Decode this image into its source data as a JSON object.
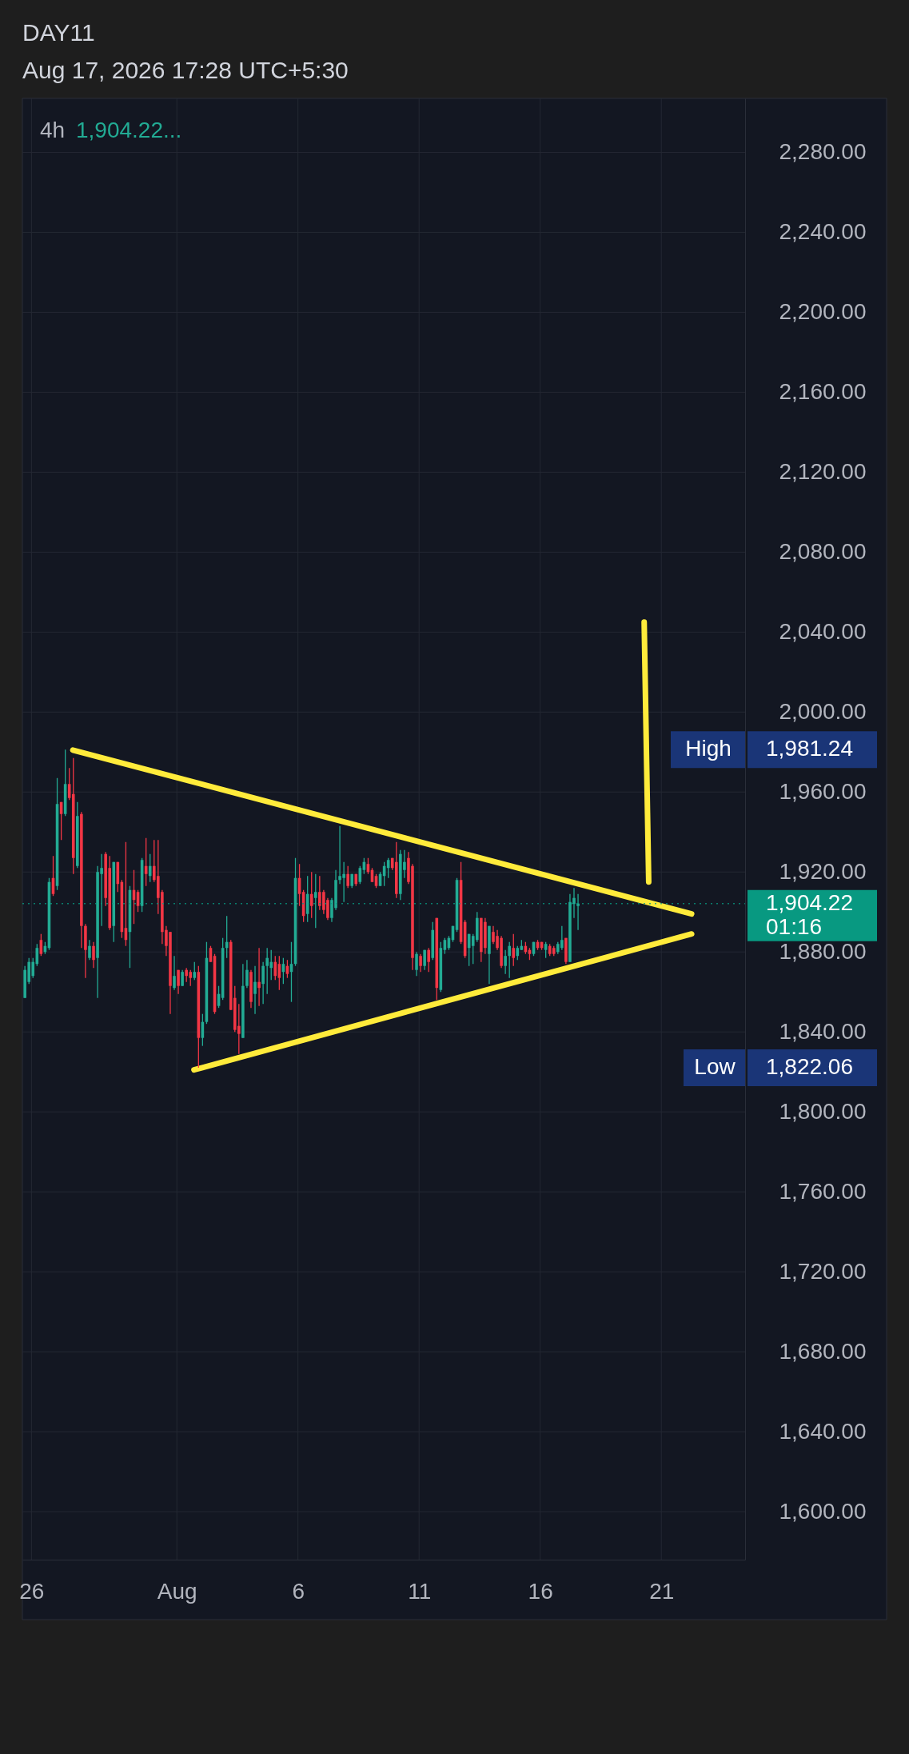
{
  "chart_data": {
    "type": "candlestick",
    "title": "DAY11",
    "subtitle": "Aug 17, 2026 17:28 UTC+5:30",
    "annotations": [
      "4h",
      "1,904.22...",
      "High",
      "1,981.24",
      "Low",
      "1,822.06",
      "01:16"
    ],
    "x": [
      "2026-07-25T17:30",
      "2026-07-25T21:30",
      "2026-07-26T01:30",
      "2026-07-26T05:30",
      "2026-07-26T09:30",
      "2026-07-26T13:30",
      "2026-07-26T17:30",
      "2026-07-26T21:30",
      "2026-07-27T01:30",
      "2026-07-27T05:30",
      "2026-07-27T09:30",
      "2026-07-27T13:30",
      "2026-07-27T17:30",
      "2026-07-27T21:30",
      "2026-07-28T01:30",
      "2026-07-28T05:30",
      "2026-07-28T09:30",
      "2026-07-28T13:30",
      "2026-07-28T17:30",
      "2026-07-28T21:30",
      "2026-07-29T01:30",
      "2026-07-29T05:30",
      "2026-07-29T09:30",
      "2026-07-29T13:30",
      "2026-07-29T17:30",
      "2026-07-29T21:30",
      "2026-07-30T01:30",
      "2026-07-30T05:30",
      "2026-07-30T09:30",
      "2026-07-30T13:30",
      "2026-07-30T17:30",
      "2026-07-30T21:30",
      "2026-07-31T01:30",
      "2026-07-31T05:30",
      "2026-07-31T09:30",
      "2026-07-31T13:30",
      "2026-07-31T17:30",
      "2026-07-31T21:30",
      "2026-08-01T01:30",
      "2026-08-01T05:30",
      "2026-08-01T09:30",
      "2026-08-01T13:30",
      "2026-08-01T17:30",
      "2026-08-01T21:30",
      "2026-08-02T01:30",
      "2026-08-02T05:30",
      "2026-08-02T09:30",
      "2026-08-02T13:30",
      "2026-08-02T17:30",
      "2026-08-02T21:30",
      "2026-08-03T01:30",
      "2026-08-03T05:30",
      "2026-08-03T09:30",
      "2026-08-03T13:30",
      "2026-08-03T17:30",
      "2026-08-03T21:30",
      "2026-08-04T01:30",
      "2026-08-04T05:30",
      "2026-08-04T09:30",
      "2026-08-04T13:30",
      "2026-08-04T17:30",
      "2026-08-04T21:30",
      "2026-08-05T01:30",
      "2026-08-05T05:30",
      "2026-08-05T09:30",
      "2026-08-05T13:30",
      "2026-08-05T17:30",
      "2026-08-05T21:30",
      "2026-08-06T01:30",
      "2026-08-06T05:30",
      "2026-08-06T09:30",
      "2026-08-06T13:30",
      "2026-08-06T17:30",
      "2026-08-06T21:30",
      "2026-08-07T01:30",
      "2026-08-07T05:30",
      "2026-08-07T09:30",
      "2026-08-07T13:30",
      "2026-08-07T17:30",
      "2026-08-07T21:30",
      "2026-08-08T01:30",
      "2026-08-08T05:30",
      "2026-08-08T09:30",
      "2026-08-08T13:30",
      "2026-08-08T17:30",
      "2026-08-08T21:30",
      "2026-08-09T01:30",
      "2026-08-09T05:30",
      "2026-08-09T09:30",
      "2026-08-09T13:30",
      "2026-08-09T17:30",
      "2026-08-09T21:30",
      "2026-08-10T01:30",
      "2026-08-10T05:30",
      "2026-08-10T09:30",
      "2026-08-10T13:30",
      "2026-08-10T17:30",
      "2026-08-10T21:30",
      "2026-08-11T01:30",
      "2026-08-11T05:30",
      "2026-08-11T09:30",
      "2026-08-11T13:30",
      "2026-08-11T17:30",
      "2026-08-11T21:30",
      "2026-08-12T01:30",
      "2026-08-12T05:30",
      "2026-08-12T09:30",
      "2026-08-12T13:30",
      "2026-08-12T17:30",
      "2026-08-12T21:30",
      "2026-08-13T01:30",
      "2026-08-13T05:30",
      "2026-08-13T09:30",
      "2026-08-13T13:30",
      "2026-08-13T17:30",
      "2026-08-13T21:30",
      "2026-08-14T01:30",
      "2026-08-14T05:30",
      "2026-08-14T09:30",
      "2026-08-14T13:30",
      "2026-08-14T17:30",
      "2026-08-14T21:30",
      "2026-08-15T01:30",
      "2026-08-15T05:30",
      "2026-08-15T09:30",
      "2026-08-15T13:30",
      "2026-08-15T17:30",
      "2026-08-15T21:30",
      "2026-08-16T01:30",
      "2026-08-16T05:30",
      "2026-08-16T09:30",
      "2026-08-16T13:30",
      "2026-08-16T17:30",
      "2026-08-16T21:30",
      "2026-08-17T01:30",
      "2026-08-17T05:30",
      "2026-08-17T09:30",
      "2026-08-17T13:30"
    ],
    "ohlc": [
      [
        1857,
        1873,
        1857,
        1871
      ],
      [
        1865,
        1877,
        1864,
        1875
      ],
      [
        1868,
        1877,
        1867,
        1875
      ],
      [
        1874,
        1884,
        1873,
        1882
      ],
      [
        1886,
        1889,
        1878,
        1879
      ],
      [
        1880,
        1885,
        1879,
        1883
      ],
      [
        1882,
        1917,
        1881,
        1915
      ],
      [
        1917,
        1928,
        1908,
        1909
      ],
      [
        1913,
        1967,
        1911,
        1954
      ],
      [
        1955,
        1955,
        1936,
        1949
      ],
      [
        1949,
        1981.24,
        1948,
        1964
      ],
      [
        1964,
        1972,
        1956,
        1957
      ],
      [
        1959,
        1977,
        1919,
        1927
      ],
      [
        1923,
        1955,
        1922,
        1948
      ],
      [
        1949,
        1950,
        1882,
        1893
      ],
      [
        1893,
        1894,
        1867,
        1881
      ],
      [
        1877,
        1886,
        1876,
        1883
      ],
      [
        1883,
        1885,
        1872,
        1876
      ],
      [
        1877,
        1923,
        1857,
        1920
      ],
      [
        1919,
        1929,
        1893,
        1922
      ],
      [
        1929,
        1930,
        1903,
        1907
      ],
      [
        1922,
        1928,
        1891,
        1892
      ],
      [
        1893,
        1925,
        1885,
        1925
      ],
      [
        1925,
        1925,
        1910,
        1914
      ],
      [
        1915,
        1916,
        1887,
        1890
      ],
      [
        1892,
        1935,
        1883,
        1886
      ],
      [
        1890,
        1913,
        1872,
        1911
      ],
      [
        1911,
        1921,
        1894,
        1906
      ],
      [
        1910,
        1911,
        1900,
        1903
      ],
      [
        1903,
        1927,
        1900,
        1926
      ],
      [
        1923,
        1937,
        1913,
        1919
      ],
      [
        1918,
        1929,
        1915,
        1923
      ],
      [
        1923,
        1936,
        1915,
        1916
      ],
      [
        1918,
        1936,
        1899,
        1907
      ],
      [
        1910,
        1911,
        1884,
        1890
      ],
      [
        1891,
        1893,
        1878,
        1883
      ],
      [
        1890,
        1890,
        1849,
        1863
      ],
      [
        1862,
        1878,
        1861,
        1868
      ],
      [
        1871,
        1871,
        1859,
        1863
      ],
      [
        1863,
        1871,
        1863,
        1870
      ],
      [
        1871,
        1872,
        1865,
        1868
      ],
      [
        1870,
        1871,
        1863,
        1867
      ],
      [
        1867,
        1875,
        1866,
        1870
      ],
      [
        1870,
        1873,
        1822.06,
        1837
      ],
      [
        1837,
        1849,
        1833,
        1845
      ],
      [
        1845,
        1885,
        1844,
        1877
      ],
      [
        1882,
        1883,
        1875,
        1875
      ],
      [
        1878,
        1879,
        1849,
        1850
      ],
      [
        1853,
        1863,
        1852,
        1859
      ],
      [
        1857,
        1887,
        1856,
        1882
      ],
      [
        1882,
        1898,
        1877,
        1885
      ],
      [
        1885,
        1886,
        1851,
        1851
      ],
      [
        1857,
        1863,
        1840,
        1841
      ],
      [
        1843,
        1854,
        1829,
        1839
      ],
      [
        1837,
        1874,
        1837,
        1863
      ],
      [
        1863,
        1876,
        1862,
        1871
      ],
      [
        1870,
        1871,
        1852,
        1855
      ],
      [
        1859,
        1873,
        1849,
        1865
      ],
      [
        1865,
        1882,
        1853,
        1862
      ],
      [
        1864,
        1875,
        1854,
        1873
      ],
      [
        1873,
        1882,
        1859,
        1877
      ],
      [
        1872,
        1881,
        1866,
        1875
      ],
      [
        1875,
        1878,
        1866,
        1868
      ],
      [
        1874,
        1878,
        1861,
        1867
      ],
      [
        1870,
        1877,
        1864,
        1874
      ],
      [
        1873,
        1876,
        1867,
        1869
      ],
      [
        1870,
        1885,
        1855,
        1874
      ],
      [
        1874,
        1927,
        1873,
        1917
      ],
      [
        1917,
        1924,
        1903,
        1909
      ],
      [
        1910,
        1911,
        1895,
        1898
      ],
      [
        1899,
        1918,
        1895,
        1909
      ],
      [
        1909,
        1920,
        1897,
        1903
      ],
      [
        1907,
        1919,
        1892,
        1910
      ],
      [
        1910,
        1918,
        1901,
        1903
      ],
      [
        1910,
        1911,
        1899,
        1901
      ],
      [
        1906,
        1907,
        1896,
        1897
      ],
      [
        1897,
        1907,
        1895,
        1906
      ],
      [
        1902,
        1921,
        1901,
        1916
      ],
      [
        1916,
        1943,
        1914,
        1918
      ],
      [
        1917,
        1925,
        1905,
        1919
      ],
      [
        1919,
        1923,
        1912,
        1913
      ],
      [
        1913,
        1919,
        1912,
        1919
      ],
      [
        1919,
        1919,
        1913,
        1914
      ],
      [
        1915,
        1923,
        1914,
        1922
      ],
      [
        1921,
        1927,
        1919,
        1925
      ],
      [
        1924,
        1927,
        1919,
        1920
      ],
      [
        1921,
        1922,
        1915,
        1915
      ],
      [
        1918,
        1919,
        1912,
        1913
      ],
      [
        1913,
        1920,
        1913,
        1919
      ],
      [
        1918,
        1925,
        1913,
        1923
      ],
      [
        1922,
        1927,
        1917,
        1926
      ],
      [
        1927,
        1927,
        1921,
        1922
      ],
      [
        1925,
        1935,
        1907,
        1909
      ],
      [
        1909,
        1931,
        1906,
        1929
      ],
      [
        1921,
        1931,
        1917,
        1925
      ],
      [
        1927,
        1930,
        1914,
        1915
      ],
      [
        1923,
        1924,
        1871,
        1877
      ],
      [
        1871,
        1880,
        1868,
        1879
      ],
      [
        1878,
        1879,
        1870,
        1873
      ],
      [
        1873,
        1881,
        1871,
        1881
      ],
      [
        1881,
        1882,
        1870,
        1875
      ],
      [
        1877,
        1895,
        1876,
        1891
      ],
      [
        1897,
        1897,
        1856,
        1862
      ],
      [
        1861,
        1885,
        1860,
        1882
      ],
      [
        1881,
        1887,
        1879,
        1886
      ],
      [
        1882,
        1888,
        1881,
        1887
      ],
      [
        1886,
        1893,
        1885,
        1893
      ],
      [
        1891,
        1917,
        1890,
        1916
      ],
      [
        1916,
        1925,
        1884,
        1885
      ],
      [
        1895,
        1896,
        1877,
        1878
      ],
      [
        1882,
        1889,
        1873,
        1889
      ],
      [
        1883,
        1889,
        1874,
        1888
      ],
      [
        1886,
        1900,
        1885,
        1897
      ],
      [
        1897,
        1897,
        1875,
        1880
      ],
      [
        1895,
        1897,
        1879,
        1882
      ],
      [
        1879,
        1893,
        1864,
        1893
      ],
      [
        1890,
        1893,
        1884,
        1885
      ],
      [
        1888,
        1891,
        1881,
        1882
      ],
      [
        1887,
        1888,
        1872,
        1873
      ],
      [
        1873,
        1881,
        1869,
        1878
      ],
      [
        1878,
        1885,
        1867,
        1883
      ],
      [
        1882,
        1889,
        1873,
        1877
      ],
      [
        1878,
        1883,
        1876,
        1882
      ],
      [
        1881,
        1886,
        1881,
        1883
      ],
      [
        1883,
        1885,
        1879,
        1880
      ],
      [
        1881,
        1882,
        1876,
        1879
      ],
      [
        1879,
        1885,
        1878,
        1885
      ],
      [
        1885,
        1886,
        1881,
        1882
      ],
      [
        1885,
        1885,
        1881,
        1882
      ],
      [
        1881,
        1885,
        1877,
        1884
      ],
      [
        1883,
        1884,
        1878,
        1879
      ],
      [
        1882,
        1883,
        1878,
        1879
      ],
      [
        1880,
        1885,
        1879,
        1884
      ],
      [
        1882,
        1893,
        1881,
        1886
      ],
      [
        1887,
        1887,
        1874,
        1875
      ],
      [
        1875,
        1909,
        1875,
        1905
      ],
      [
        1904,
        1912,
        1897,
        1907
      ],
      [
        1903,
        1909,
        1891,
        1904.22
      ]
    ],
    "colors": [
      "#22ab94",
      "#22ab94",
      "#22ab94",
      "#22ab94",
      "#f23645",
      "#22ab94",
      "#22ab94",
      "#f23645",
      "#22ab94",
      "#f23645",
      "#22ab94",
      "#f23645",
      "#f23645",
      "#22ab94",
      "#f23645",
      "#f23645",
      "#22ab94",
      "#f23645",
      "#22ab94",
      "#22ab94",
      "#f23645",
      "#f23645",
      "#22ab94",
      "#f23645",
      "#f23645",
      "#f23645",
      "#22ab94",
      "#f23645",
      "#f23645",
      "#22ab94",
      "#f23645",
      "#22ab94",
      "#f23645",
      "#f23645",
      "#f23645",
      "#f23645",
      "#f23645",
      "#22ab94",
      "#f23645",
      "#22ab94",
      "#f23645",
      "#f23645",
      "#22ab94",
      "#f23645",
      "#22ab94",
      "#22ab94",
      "#f23645",
      "#f23645",
      "#22ab94",
      "#22ab94",
      "#22ab94",
      "#f23645",
      "#f23645",
      "#f23645",
      "#22ab94",
      "#22ab94",
      "#f23645",
      "#22ab94",
      "#f23645",
      "#22ab94",
      "#22ab94",
      "#22ab94",
      "#f23645",
      "#f23645",
      "#22ab94",
      "#f23645",
      "#22ab94",
      "#22ab94",
      "#f23645",
      "#f23645",
      "#22ab94",
      "#f23645",
      "#22ab94",
      "#f23645",
      "#f23645",
      "#f23645",
      "#22ab94",
      "#22ab94",
      "#22ab94",
      "#22ab94",
      "#f23645",
      "#22ab94",
      "#f23645",
      "#22ab94",
      "#22ab94",
      "#f23645",
      "#f23645",
      "#f23645",
      "#22ab94",
      "#22ab94",
      "#22ab94",
      "#f23645",
      "#f23645",
      "#22ab94",
      "#22ab94",
      "#f23645",
      "#f23645",
      "#22ab94",
      "#f23645",
      "#22ab94",
      "#f23645",
      "#22ab94",
      "#f23645",
      "#22ab94",
      "#22ab94",
      "#22ab94",
      "#22ab94",
      "#22ab94",
      "#f23645",
      "#f23645",
      "#22ab94",
      "#22ab94",
      "#22ab94",
      "#f23645",
      "#f23645",
      "#22ab94",
      "#f23645",
      "#f23645",
      "#f23645",
      "#22ab94",
      "#22ab94",
      "#f23645",
      "#22ab94",
      "#22ab94",
      "#f23645",
      "#f23645",
      "#22ab94",
      "#f23645",
      "#f23645",
      "#22ab94",
      "#f23645",
      "#f23645",
      "#22ab94",
      "#22ab94",
      "#f23645",
      "#22ab94",
      "#22ab94",
      "#22ab94"
    ],
    "series": [
      {
        "type": "line",
        "color": "#ffeb3b",
        "x": [
          "2026-07-27T17:00",
          "2026-08-22T06:00"
        ],
        "values": [
          1981,
          1899
        ]
      },
      {
        "type": "line",
        "color": "#ffeb3b",
        "x": [
          "2026-08-01T17:00",
          "2026-08-22T06:00"
        ],
        "values": [
          1821,
          1889
        ]
      },
      {
        "type": "line",
        "color": "#ffeb3b",
        "x": [
          "2026-08-20T07:00",
          "2026-08-20T11:30"
        ],
        "values": [
          2045,
          1915
        ]
      }
    ],
    "xlim": [
      "2026-07-25T15:00",
      "2026-08-24T11:00"
    ],
    "xticks": [
      {
        "value": "2026-07-26T00:00",
        "label": "26"
      },
      {
        "value": "2026-08-01T00:00",
        "label": "Aug"
      },
      {
        "value": "2026-08-06T00:00",
        "label": "6"
      },
      {
        "value": "2026-08-11T00:00",
        "label": "11"
      },
      {
        "value": "2026-08-16T00:00",
        "label": "16"
      },
      {
        "value": "2026-08-21T00:00",
        "label": "21"
      }
    ],
    "ylim": [
      1576,
      2307
    ],
    "yticks": [
      {
        "value": 1600,
        "label": "1,600.00"
      },
      {
        "value": 1640,
        "label": "1,640.00"
      },
      {
        "value": 1680,
        "label": "1,680.00"
      },
      {
        "value": 1720,
        "label": "1,720.00"
      },
      {
        "value": 1760,
        "label": "1,760.00"
      },
      {
        "value": 1800,
        "label": "1,800.00"
      },
      {
        "value": 1840,
        "label": "1,840.00"
      },
      {
        "value": 1880,
        "label": "1,880.00"
      },
      {
        "value": 1920,
        "label": "1,920.00"
      },
      {
        "value": 1960,
        "label": "1,960.00"
      },
      {
        "value": 2000,
        "label": "2,000.00"
      },
      {
        "value": 2040,
        "label": "2,040.00"
      },
      {
        "value": 2080,
        "label": "2,080.00"
      },
      {
        "value": 2120,
        "label": "2,120.00"
      },
      {
        "value": 2160,
        "label": "2,160.00"
      },
      {
        "value": 2200,
        "label": "2,200.00"
      },
      {
        "value": 2240,
        "label": "2,240.00"
      },
      {
        "value": 2280,
        "label": "2,280.00"
      }
    ],
    "grid": true,
    "ref_lines": [
      {
        "axis": "y",
        "value": 1904.22,
        "label": "1,904.22",
        "color": "#089981",
        "line_style": "dotted"
      }
    ]
  }
}
